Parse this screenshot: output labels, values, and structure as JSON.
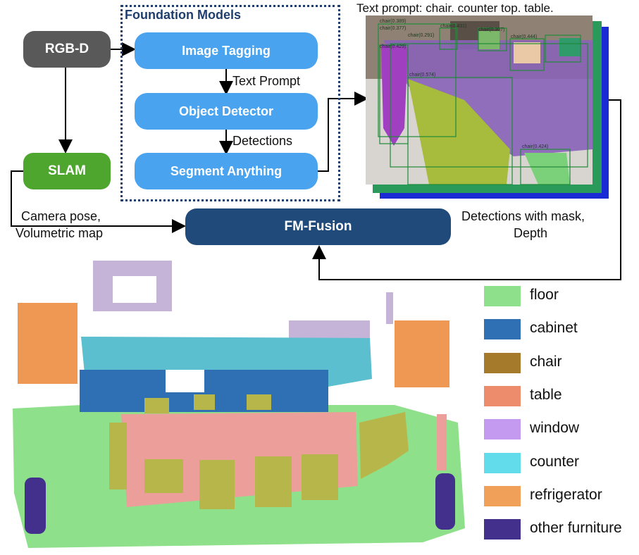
{
  "pipeline": {
    "rgbd": "RGB-D",
    "slam": "SLAM",
    "foundation_title": "Foundation Models",
    "image_tagging": "Image Tagging",
    "text_prompt_arrow": "Text Prompt",
    "object_detector": "Object Detector",
    "detections_arrow": "Detections",
    "segment_anything": "Segment Anything",
    "fm_fusion": "FM-Fusion",
    "camera_pose": "Camera pose,",
    "volumetric_map": "Volumetric map",
    "detections_mask": "Detections with mask,",
    "depth": "Depth",
    "text_prompt_caption": "Text prompt: chair. counter top. table."
  },
  "detection_image": {
    "box_labels": [
      "chair(0.389)",
      "chair(0.377)",
      "chair(0.431)",
      "chair(0.307)",
      "chair(0.444)",
      "chair(0.291)",
      "chair(0.429)",
      "chair(0.574)",
      "chair(0.424)"
    ]
  },
  "legend": [
    {
      "label": "floor",
      "color": "#8fe08a"
    },
    {
      "label": "cabinet",
      "color": "#2f6fb4"
    },
    {
      "label": "chair",
      "color": "#a57a2a"
    },
    {
      "label": "table",
      "color": "#ec8c6c"
    },
    {
      "label": "window",
      "color": "#c49af0"
    },
    {
      "label": "counter",
      "color": "#62dcea"
    },
    {
      "label": "refrigerator",
      "color": "#f1a05a"
    },
    {
      "label": "other furniture",
      "color": "#432f8c"
    }
  ]
}
